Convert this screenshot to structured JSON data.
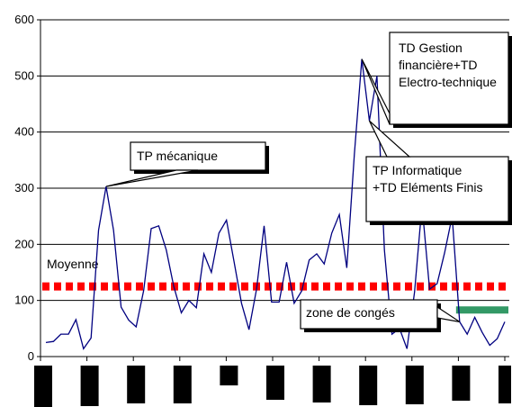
{
  "chart_data": {
    "type": "line",
    "ylim": [
      0,
      600
    ],
    "y_ticks": [
      "0",
      "100",
      "200",
      "300",
      "400",
      "500",
      "600"
    ],
    "grid": "horizontal",
    "series": [
      {
        "color": "#000080",
        "values": [
          25,
          27,
          40,
          40,
          66,
          14,
          33,
          225,
          303,
          225,
          88,
          65,
          53,
          118,
          228,
          233,
          190,
          125,
          78,
          100,
          87,
          183,
          150,
          220,
          243,
          170,
          95,
          48,
          120,
          233,
          97,
          97,
          168,
          95,
          117,
          172,
          183,
          165,
          220,
          253,
          158,
          360,
          530,
          420,
          500,
          190,
          40,
          50,
          14,
          115,
          270,
          120,
          130,
          185,
          250,
          62,
          40,
          70,
          43,
          20,
          32,
          62
        ]
      }
    ],
    "reference_lines": [
      {
        "label": "Moyenne",
        "value": 125,
        "style": "dotted",
        "color": "#ff0000"
      }
    ],
    "shaded_band": {
      "value": 83,
      "x_from": 55,
      "x_to": 61,
      "color": "#339966"
    },
    "annotations": [
      {
        "text_lines": [
          "TP mécanique"
        ],
        "x_index": 8
      },
      {
        "text_lines": [
          "TD Gestion",
          "financière+TD",
          "Electro-technique"
        ],
        "x_index": 42
      },
      {
        "text_lines": [
          "TP Informatique",
          "+TD Eléments Finis"
        ],
        "x_index": 43
      },
      {
        "text_lines": [
          "zone de congés"
        ],
        "x_index": 55
      }
    ]
  }
}
